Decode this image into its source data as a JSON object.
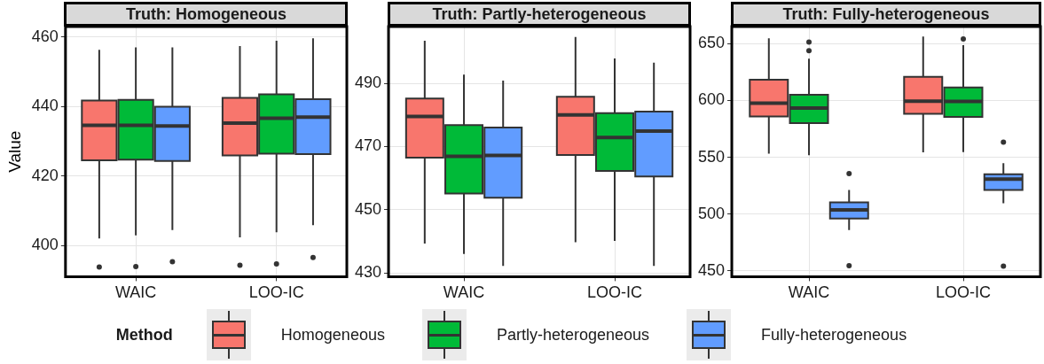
{
  "chart_data": [
    {
      "type": "box",
      "title": "Truth: Homogeneous",
      "ylabel": "Value",
      "categories": [
        "WAIC",
        "LOO-IC"
      ],
      "ylim": [
        391,
        463
      ],
      "yticks": [
        400,
        420,
        440,
        460
      ],
      "grid": true,
      "legend": "bottom",
      "legend_title": "Method",
      "series": [
        {
          "name": "Homogeneous",
          "color": "#f8766d",
          "boxes": [
            {
              "low": 402.0,
              "q1": 424.5,
              "median": 434.6,
              "q3": 441.7,
              "high": 456.3,
              "outliers": [
                393.8
              ]
            },
            {
              "low": 402.3,
              "q1": 425.9,
              "median": 435.2,
              "q3": 442.5,
              "high": 457.4,
              "outliers": [
                394.3
              ]
            }
          ]
        },
        {
          "name": "Partly-heterogeneous",
          "color": "#00ba38",
          "boxes": [
            {
              "low": 402.9,
              "q1": 424.7,
              "median": 434.6,
              "q3": 441.9,
              "high": 457.0,
              "outliers": [
                393.9
              ]
            },
            {
              "low": 403.8,
              "q1": 426.4,
              "median": 436.6,
              "q3": 443.5,
              "high": 458.9,
              "outliers": [
                394.7
              ]
            }
          ]
        },
        {
          "name": "Fully-heterogeneous",
          "color": "#619cff",
          "boxes": [
            {
              "low": 404.4,
              "q1": 424.3,
              "median": 434.4,
              "q3": 439.9,
              "high": 457.0,
              "outliers": [
                395.3
              ]
            },
            {
              "low": 405.8,
              "q1": 426.3,
              "median": 436.9,
              "q3": 442.1,
              "high": 459.6,
              "outliers": [
                396.5
              ]
            }
          ]
        }
      ]
    },
    {
      "type": "box",
      "title": "Truth: Partly-heterogeneous",
      "categories": [
        "WAIC",
        "LOO-IC"
      ],
      "ylim": [
        428.8,
        508
      ],
      "yticks": [
        430,
        450,
        470,
        490
      ],
      "grid": true,
      "series": [
        {
          "color": "#f8766d",
          "boxes": [
            {
              "low": 439.3,
              "q1": 466.5,
              "median": 479.5,
              "q3": 485.2,
              "high": 503.5
            },
            {
              "low": 439.7,
              "q1": 467.3,
              "median": 480.0,
              "q3": 485.8,
              "high": 504.7
            }
          ]
        },
        {
          "color": "#00ba38",
          "boxes": [
            {
              "low": 436.0,
              "q1": 455.1,
              "median": 466.9,
              "q3": 476.8,
              "high": 492.8
            },
            {
              "low": 440.1,
              "q1": 462.3,
              "median": 472.9,
              "q3": 480.6,
              "high": 497.9
            }
          ]
        },
        {
          "color": "#619cff",
          "boxes": [
            {
              "low": 432.2,
              "q1": 453.8,
              "median": 467.2,
              "q3": 476.0,
              "high": 490.9
            },
            {
              "low": 432.2,
              "q1": 460.5,
              "median": 474.9,
              "q3": 481.1,
              "high": 496.6
            }
          ]
        }
      ]
    },
    {
      "type": "box",
      "title": "Truth: Fully-heterogeneous",
      "categories": [
        "WAIC",
        "LOO-IC"
      ],
      "ylim": [
        445,
        665
      ],
      "yticks": [
        450,
        500,
        550,
        600,
        650
      ],
      "grid": true,
      "series": [
        {
          "color": "#f8766d",
          "boxes": [
            {
              "low": 553.3,
              "q1": 586.0,
              "median": 597.7,
              "q3": 618.3,
              "high": 654.6
            },
            {
              "low": 554.3,
              "q1": 588.2,
              "median": 599.3,
              "q3": 620.7,
              "high": 656.2
            }
          ]
        },
        {
          "color": "#00ba38",
          "boxes": [
            {
              "low": 551.9,
              "q1": 580.1,
              "median": 593.4,
              "q3": 605.0,
              "high": 636.7,
              "outliers": [
                651.4,
                643.8
              ]
            },
            {
              "low": 554.6,
              "q1": 585.5,
              "median": 599.1,
              "q3": 611.5,
              "high": 648.6,
              "outliers": [
                654.1
              ]
            }
          ]
        },
        {
          "color": "#619cff",
          "boxes": [
            {
              "low": 486.0,
              "q1": 496.1,
              "median": 503.7,
              "q3": 510.4,
              "high": 521.3,
              "outliers": [
                535.6,
                454.6
              ]
            },
            {
              "low": 509.6,
              "q1": 521.3,
              "median": 530.8,
              "q3": 535.1,
              "high": 544.9,
              "outliers": [
                563.3,
                454.3
              ]
            }
          ]
        }
      ]
    }
  ]
}
